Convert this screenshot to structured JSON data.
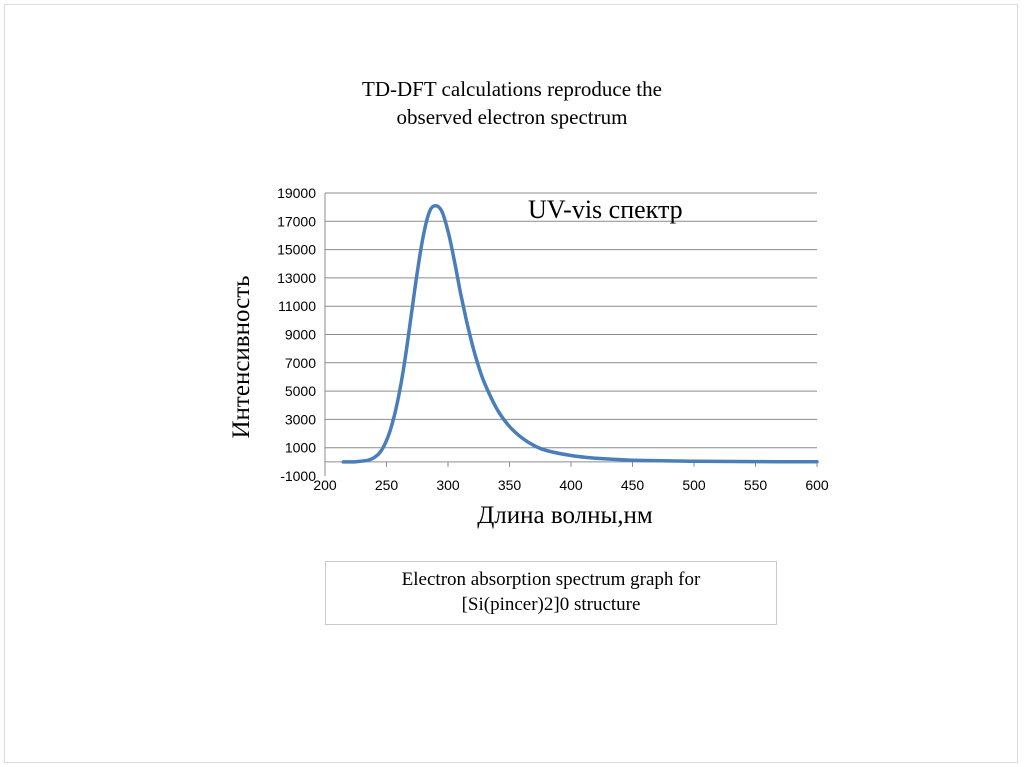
{
  "slide": {
    "title_line1": "TD-DFT calculations reproduce the",
    "title_line2": "observed electron spectrum",
    "caption_line1": "Electron absorption spectrum graph for",
    "caption_line2": "[Si(pincer)2]0 structure"
  },
  "colors": {
    "line": "#4a7ebb",
    "grid": "#8c8c8c",
    "axis": "#8c8c8c",
    "text": "#000000"
  },
  "chart_data": {
    "type": "line",
    "title": "UV-vis спектр",
    "xlabel": "Длина волны,нм",
    "ylabel": "Интенсивность",
    "xlim": [
      200,
      600
    ],
    "ylim": [
      -1000,
      19000
    ],
    "xticks": [
      200,
      250,
      300,
      350,
      400,
      450,
      500,
      550,
      600
    ],
    "yticks": [
      -1000,
      1000,
      3000,
      5000,
      7000,
      9000,
      11000,
      13000,
      15000,
      17000,
      19000
    ],
    "grid": true,
    "series": [
      {
        "name": "UV-vis спектр",
        "x": [
          215,
          225,
          235,
          240,
          245,
          250,
          255,
          260,
          265,
          270,
          275,
          280,
          285,
          290,
          295,
          300,
          305,
          310,
          315,
          320,
          325,
          330,
          340,
          350,
          360,
          370,
          380,
          400,
          420,
          450,
          500,
          550,
          600
        ],
        "y": [
          0,
          10,
          120,
          300,
          700,
          1500,
          2800,
          4700,
          7200,
          10300,
          13400,
          16000,
          17700,
          18100,
          17700,
          16300,
          14300,
          12000,
          10000,
          8200,
          6700,
          5500,
          3700,
          2500,
          1700,
          1150,
          800,
          450,
          260,
          120,
          40,
          15,
          5
        ]
      }
    ]
  }
}
